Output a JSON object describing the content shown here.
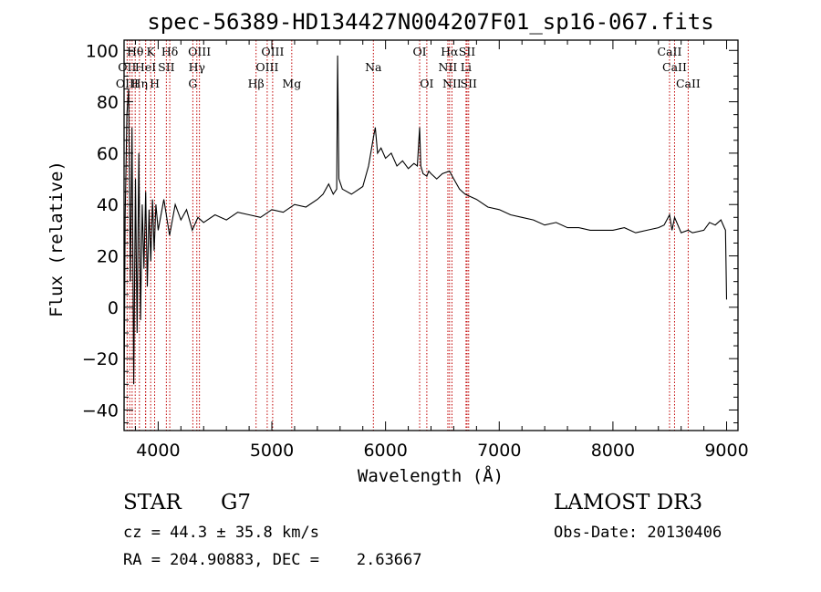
{
  "chart_data": {
    "type": "line",
    "title": "spec-56389-HD134427N004207F01_sp16-067.fits",
    "xlabel": "Wavelength (Å)",
    "ylabel": "Flux (relative)",
    "xlim": [
      3700,
      9100
    ],
    "ylim": [
      -48,
      104
    ],
    "xticks": [
      {
        "value": 4000,
        "label": "4000"
      },
      {
        "value": 5000,
        "label": "5000"
      },
      {
        "value": 6000,
        "label": "6000"
      },
      {
        "value": 7000,
        "label": "7000"
      },
      {
        "value": 8000,
        "label": "8000"
      },
      {
        "value": 9000,
        "label": "9000"
      }
    ],
    "yticks": [
      {
        "value": 100,
        "label": "100"
      },
      {
        "value": 80,
        "label": "80"
      },
      {
        "value": 60,
        "label": "60"
      },
      {
        "value": 40,
        "label": "40"
      },
      {
        "value": 20,
        "label": "20"
      },
      {
        "value": 0,
        "label": "0"
      },
      {
        "value": -20,
        "label": "−20"
      },
      {
        "value": -40,
        "label": "−40"
      }
    ],
    "spectral_lines": [
      {
        "label": "Hθ",
        "wavelength": 3798,
        "row": 0
      },
      {
        "label": "K",
        "wavelength": 3934,
        "row": 0
      },
      {
        "label": "Hδ",
        "wavelength": 4102,
        "row": 0
      },
      {
        "label": "OIII",
        "wavelength": 4363,
        "row": 0
      },
      {
        "label": "OIII",
        "wavelength": 5007,
        "row": 0
      },
      {
        "label": "OI",
        "wavelength": 6300,
        "row": 0
      },
      {
        "label": "Hα",
        "wavelength": 6563,
        "row": 0
      },
      {
        "label": "SII",
        "wavelength": 6717,
        "row": 0
      },
      {
        "label": "CaII",
        "wavelength": 8498,
        "row": 0
      },
      {
        "label": "OII",
        "wavelength": 3727,
        "row": 1
      },
      {
        "label": "HeI",
        "wavelength": 3889,
        "row": 1
      },
      {
        "label": "SII",
        "wavelength": 4072,
        "row": 1
      },
      {
        "label": "Hγ",
        "wavelength": 4340,
        "row": 1
      },
      {
        "label": "OIII",
        "wavelength": 4959,
        "row": 1
      },
      {
        "label": "Na",
        "wavelength": 5893,
        "row": 1
      },
      {
        "label": "NII",
        "wavelength": 6548,
        "row": 1
      },
      {
        "label": "Li",
        "wavelength": 6708,
        "row": 1
      },
      {
        "label": "CaII",
        "wavelength": 8542,
        "row": 1
      },
      {
        "label": "OIII",
        "wavelength": 3727,
        "row": 2
      },
      {
        "label": "Hη",
        "wavelength": 3835,
        "row": 2
      },
      {
        "label": "H",
        "wavelength": 3969,
        "row": 2
      },
      {
        "label": "G",
        "wavelength": 4305,
        "row": 2
      },
      {
        "label": "Hβ",
        "wavelength": 4861,
        "row": 2
      },
      {
        "label": "Mg",
        "wavelength": 5175,
        "row": 2
      },
      {
        "label": "OI",
        "wavelength": 6363,
        "row": 2
      },
      {
        "label": "NII",
        "wavelength": 6584,
        "row": 2
      },
      {
        "label": "SII",
        "wavelength": 6731,
        "row": 2
      },
      {
        "label": "CaII",
        "wavelength": 8662,
        "row": 2
      }
    ],
    "extra_line_markers": [
      3750,
      3771,
      3890
    ],
    "series": [
      {
        "name": "flux",
        "x": [
          3700,
          3710,
          3725,
          3740,
          3755,
          3770,
          3785,
          3800,
          3815,
          3830,
          3845,
          3860,
          3875,
          3890,
          3905,
          3920,
          3935,
          3950,
          3965,
          3980,
          4000,
          4050,
          4100,
          4150,
          4200,
          4250,
          4300,
          4350,
          4400,
          4500,
          4600,
          4700,
          4800,
          4900,
          5000,
          5100,
          5200,
          5300,
          5400,
          5450,
          5500,
          5540,
          5570,
          5578,
          5590,
          5620,
          5700,
          5800,
          5850,
          5893,
          5910,
          5930,
          5960,
          6000,
          6050,
          6100,
          6150,
          6200,
          6250,
          6280,
          6300,
          6310,
          6330,
          6363,
          6380,
          6400,
          6450,
          6500,
          6563,
          6600,
          6650,
          6700,
          6750,
          6800,
          6900,
          7000,
          7100,
          7200,
          7300,
          7400,
          7500,
          7600,
          7700,
          7800,
          7900,
          8000,
          8100,
          8200,
          8300,
          8400,
          8450,
          8498,
          8520,
          8542,
          8600,
          8662,
          8700,
          8800,
          8850,
          8900,
          8950,
          8980,
          8990,
          9000
        ],
        "y": [
          -40,
          35,
          75,
          85,
          10,
          70,
          -30,
          50,
          -10,
          60,
          -5,
          40,
          15,
          45,
          8,
          38,
          18,
          42,
          22,
          40,
          30,
          42,
          28,
          40,
          34,
          38,
          30,
          35,
          33,
          36,
          34,
          37,
          36,
          35,
          38,
          37,
          40,
          39,
          42,
          44,
          48,
          44,
          46,
          98,
          50,
          46,
          44,
          47,
          55,
          66,
          70,
          60,
          62,
          58,
          60,
          55,
          57,
          54,
          56,
          55,
          70,
          55,
          52,
          51,
          53,
          52,
          50,
          52,
          53,
          50,
          46,
          44,
          43,
          42,
          39,
          38,
          36,
          35,
          34,
          32,
          33,
          31,
          31,
          30,
          30,
          30,
          31,
          29,
          30,
          31,
          32,
          36,
          30,
          35,
          29,
          30,
          29,
          30,
          33,
          32,
          34,
          31,
          30,
          3
        ]
      }
    ]
  },
  "info": {
    "object_class": "STAR",
    "subclass": "G7",
    "survey": "LAMOST DR3",
    "cz": "cz = 44.3 ± 35.8 km/s",
    "obs_date": "Obs-Date: 20130406",
    "coords": "RA = 204.90883, DEC =    2.63667"
  }
}
